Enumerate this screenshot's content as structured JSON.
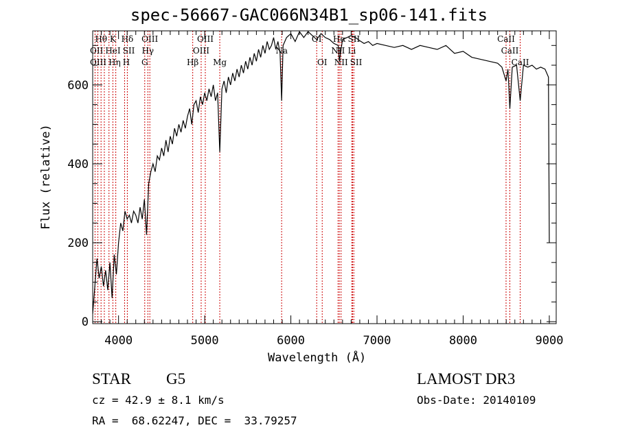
{
  "chart_data": {
    "type": "line",
    "title": "spec-56667-GAC066N34B1_sp06-141.fits",
    "xlabel": "Wavelength (Å)",
    "ylabel": "Flux (relative)",
    "xlim": [
      3700,
      9080
    ],
    "ylim": [
      -5,
      737
    ],
    "xticks": [
      4000,
      5000,
      6000,
      7000,
      8000,
      9000
    ],
    "yticks": [
      0,
      200,
      400,
      600
    ],
    "grid": false,
    "series": [
      {
        "name": "spectrum",
        "x": [
          3700,
          3725,
          3750,
          3775,
          3800,
          3825,
          3850,
          3875,
          3900,
          3925,
          3950,
          3975,
          4000,
          4025,
          4050,
          4075,
          4100,
          4125,
          4150,
          4175,
          4200,
          4225,
          4250,
          4275,
          4300,
          4325,
          4350,
          4375,
          4400,
          4425,
          4450,
          4475,
          4500,
          4525,
          4550,
          4575,
          4600,
          4625,
          4650,
          4675,
          4700,
          4725,
          4750,
          4775,
          4800,
          4825,
          4850,
          4875,
          4900,
          4925,
          4950,
          4975,
          5000,
          5025,
          5050,
          5075,
          5100,
          5125,
          5150,
          5175,
          5200,
          5225,
          5250,
          5275,
          5300,
          5325,
          5350,
          5375,
          5400,
          5425,
          5450,
          5475,
          5500,
          5525,
          5550,
          5575,
          5600,
          5625,
          5650,
          5675,
          5700,
          5725,
          5750,
          5775,
          5800,
          5825,
          5850,
          5875,
          5893,
          5910,
          5950,
          6000,
          6050,
          6100,
          6150,
          6200,
          6250,
          6300,
          6350,
          6400,
          6450,
          6500,
          6550,
          6563,
          6600,
          6650,
          6700,
          6750,
          6800,
          6850,
          6900,
          6950,
          7000,
          7100,
          7200,
          7300,
          7400,
          7500,
          7600,
          7700,
          7800,
          7900,
          8000,
          8100,
          8200,
          8300,
          8400,
          8450,
          8498,
          8520,
          8542,
          8570,
          8620,
          8662,
          8700,
          8750,
          8800,
          8850,
          8900,
          8950,
          8990,
          9000
        ],
        "y": [
          20,
          90,
          160,
          110,
          140,
          90,
          130,
          80,
          150,
          60,
          170,
          120,
          200,
          250,
          230,
          280,
          260,
          270,
          250,
          280,
          270,
          250,
          290,
          260,
          310,
          220,
          350,
          380,
          400,
          380,
          420,
          410,
          440,
          420,
          460,
          430,
          470,
          450,
          490,
          470,
          500,
          480,
          510,
          490,
          520,
          540,
          500,
          550,
          560,
          530,
          570,
          550,
          580,
          560,
          590,
          570,
          600,
          560,
          580,
          430,
          590,
          610,
          580,
          620,
          600,
          630,
          610,
          640,
          620,
          650,
          630,
          660,
          640,
          670,
          650,
          680,
          660,
          690,
          670,
          700,
          680,
          710,
          690,
          700,
          720,
          690,
          710,
          680,
          560,
          700,
          720,
          730,
          710,
          735,
          720,
          735,
          725,
          715,
          730,
          720,
          715,
          705,
          700,
          660,
          715,
          720,
          725,
          720,
          712,
          705,
          710,
          700,
          705,
          700,
          695,
          700,
          690,
          700,
          695,
          690,
          700,
          680,
          685,
          670,
          665,
          660,
          655,
          645,
          610,
          640,
          540,
          645,
          650,
          560,
          650,
          645,
          650,
          640,
          645,
          640,
          620,
          200
        ]
      }
    ],
    "line_markers": [
      {
        "label": "Hθ",
        "wave": 3797,
        "row": 0
      },
      {
        "label": "K",
        "wave": 3934,
        "row": 0
      },
      {
        "label": "Hδ",
        "wave": 4102,
        "row": 0
      },
      {
        "label": "OIII",
        "wave": 4363,
        "row": 0
      },
      {
        "label": "OIII",
        "wave": 5007,
        "row": 0
      },
      {
        "label": "OI",
        "wave": 6300,
        "row": 0
      },
      {
        "label": "Hα",
        "wave": 6563,
        "row": 0
      },
      {
        "label": "SII",
        "wave": 6716,
        "row": 0
      },
      {
        "label": "CaII",
        "wave": 8498,
        "row": 0
      },
      {
        "label": "OII",
        "wave": 3727,
        "row": 1
      },
      {
        "label": "HeI",
        "wave": 3889,
        "row": 1
      },
      {
        "label": "SII",
        "wave": 4070,
        "row": 1
      },
      {
        "label": "Hγ",
        "wave": 4340,
        "row": 1
      },
      {
        "label": "OIII",
        "wave": 4959,
        "row": 1
      },
      {
        "label": "Na",
        "wave": 5893,
        "row": 1
      },
      {
        "label": "NII",
        "wave": 6548,
        "row": 1
      },
      {
        "label": "Li",
        "wave": 6708,
        "row": 1
      },
      {
        "label": "CaII",
        "wave": 8542,
        "row": 1
      },
      {
        "label": "OIII",
        "wave": 3760,
        "row": 2
      },
      {
        "label": "Hη",
        "wave": 3835,
        "row": 2
      },
      {
        "label": "H",
        "wave": 3968,
        "row": 2
      },
      {
        "label": "G",
        "wave": 4304,
        "row": 2
      },
      {
        "label": "Hβ",
        "wave": 4861,
        "row": 2
      },
      {
        "label": "Mg",
        "wave": 5175,
        "row": 2
      },
      {
        "label": "OI",
        "wave": 6364,
        "row": 2
      },
      {
        "label": "NII",
        "wave": 6583,
        "row": 2
      },
      {
        "label": "SII",
        "wave": 6731,
        "row": 2
      },
      {
        "label": "CaII",
        "wave": 8662,
        "row": 2
      }
    ]
  },
  "info": {
    "class": "STAR",
    "subclass": "G5",
    "survey": "LAMOST DR3",
    "cz": "cz = 42.9 ± 8.1 km/s",
    "obs_date": "Obs-Date: 20140109",
    "coords": "RA =  68.62247, DEC =  33.79257"
  },
  "colors": {
    "line": "#000000",
    "marker": "#cc0000"
  }
}
